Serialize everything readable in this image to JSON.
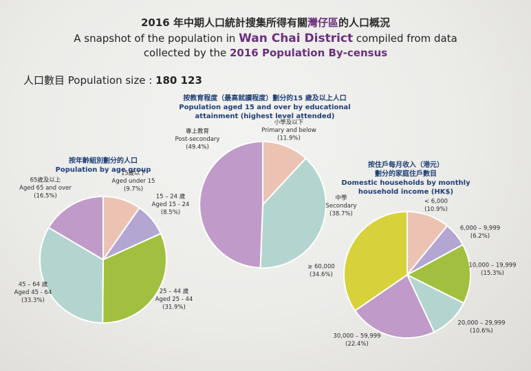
{
  "header": {
    "title_zh_prefix": "2016 年中期人口統計搜集所得有關",
    "title_zh_highlight": "灣仔區",
    "title_zh_suffix": "的人口概況",
    "title_en1_prefix": "A snapshot of the population in ",
    "title_en1_highlight": "Wan Chai District",
    "title_en1_suffix": " compiled from data",
    "title_en2_prefix": "collected by the ",
    "title_en2_highlight": "2016 Population By-census"
  },
  "population": {
    "label": "人口數目 Population size : ",
    "value": "180 123"
  },
  "chart_data": [
    {
      "type": "pie",
      "title_zh": "按年齡組別劃分的人口",
      "title_en": "Population by age group",
      "slices": [
        {
          "label_zh": "15歲以下",
          "label_en": "Aged under 15",
          "value": 9.7,
          "value_label": "(9.7%)",
          "color": "#ecc3b3"
        },
        {
          "label_zh": "15 – 24 歲",
          "label_en": "Aged 15 - 24",
          "value": 8.5,
          "value_label": "(8.5%)",
          "color": "#b3a6d2"
        },
        {
          "label_zh": "25 – 44 歲",
          "label_en": "Aged 25 - 44",
          "value": 31.9,
          "value_label": "(31.9%)",
          "color": "#a1c03f"
        },
        {
          "label_zh": "45 – 64 歲",
          "label_en": "Aged 45 - 64",
          "value": 33.3,
          "value_label": "(33.3%)",
          "color": "#b4d5cf"
        },
        {
          "label_zh": "65歲及以上",
          "label_en": "Aged 65 and over",
          "value": 16.5,
          "value_label": "(16.5%)",
          "color": "#c09ac8"
        }
      ]
    },
    {
      "type": "pie",
      "title_zh": "按教育程度（最高就讀程度）劃分的15 歲及以上人口",
      "title_en_lines": [
        "Population aged 15 and over by educational",
        "attainment (highest level attended)"
      ],
      "slices": [
        {
          "label_zh": "小學及以下",
          "label_en": "Primary and below",
          "value": 11.9,
          "value_label": "(11.9%)",
          "color": "#ecc3b3"
        },
        {
          "label_zh": "中學",
          "label_en": "Secondary",
          "value": 38.7,
          "value_label": "(38.7%)",
          "color": "#b4d5cf"
        },
        {
          "label_zh": "專上教育",
          "label_en": "Post-secondary",
          "value": 49.4,
          "value_label": "(49.4%)",
          "color": "#c09ac8"
        }
      ]
    },
    {
      "type": "pie",
      "title_zh_lines": [
        "按住戶每月收入（港元）",
        "劃分的家庭住戶數目"
      ],
      "title_en_lines": [
        "Domestic households by monthly",
        "household income (HK$)"
      ],
      "slices": [
        {
          "label_zh": "",
          "label_en": "< 6,000",
          "value": 10.9,
          "value_label": "(10.9%)",
          "color": "#ecc3b3"
        },
        {
          "label_zh": "",
          "label_en": "6,000 – 9,999",
          "value": 6.2,
          "value_label": "(6.2%)",
          "color": "#b3a6d2"
        },
        {
          "label_zh": "",
          "label_en": "10,000 – 19,999",
          "value": 15.3,
          "value_label": "(15.3%)",
          "color": "#a1c03f"
        },
        {
          "label_zh": "",
          "label_en": "20,000 – 29,999",
          "value": 10.6,
          "value_label": "(10.6%)",
          "color": "#b4d5cf"
        },
        {
          "label_zh": "",
          "label_en": "30,000 – 59,999",
          "value": 22.4,
          "value_label": "(22.4%)",
          "color": "#c09ac8"
        },
        {
          "label_zh": "",
          "label_en": "≥ 60,000",
          "value": 34.6,
          "value_label": "(34.6%)",
          "color": "#d7d13c"
        }
      ]
    }
  ]
}
